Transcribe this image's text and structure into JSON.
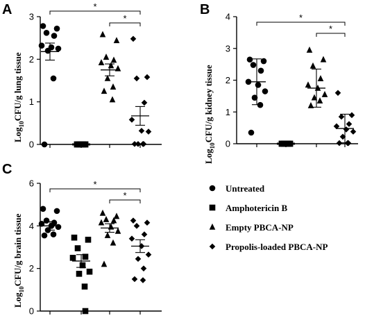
{
  "chart_data": [
    {
      "panel": "A",
      "type": "scatter",
      "ylabel": "Log10CFU/g lung tissue",
      "ylabel_main": "Log",
      "ylabel_sub": "10",
      "ylabel_rest": "CFU/g lung tissue",
      "ylim": [
        0,
        3
      ],
      "yticks": [
        0,
        1,
        2,
        3
      ],
      "groups": [
        "Untreated",
        "Amphotericin B",
        "Empty PBCA-NP",
        "Propolis-loaded PBCA-NP"
      ],
      "series": [
        {
          "marker": "circle",
          "values": [
            2.78,
            2.72,
            2.62,
            2.55,
            2.32,
            2.28,
            2.25,
            2.2,
            1.55,
            0.0
          ],
          "mean": 2.18,
          "sem": 0.2
        },
        {
          "marker": "square",
          "values": [
            0,
            0,
            0,
            0,
            0,
            0,
            0,
            0,
            0,
            0
          ],
          "mean": 0,
          "sem": 0
        },
        {
          "marker": "triangle",
          "values": [
            2.58,
            2.44,
            2.05,
            1.98,
            1.92,
            1.85,
            1.78,
            1.55,
            1.35,
            1.25,
            1.05
          ],
          "mean": 1.75,
          "sem": 0.14
        },
        {
          "marker": "diamond",
          "values": [
            2.48,
            1.58,
            1.55,
            0.98,
            0.58,
            0.32,
            0.3,
            0.01,
            0.01,
            0.01,
            0.01
          ],
          "mean": 0.67,
          "sem": 0.22
        }
      ],
      "significance": [
        {
          "from": 0,
          "to": 3,
          "label": "*"
        },
        {
          "from": 2,
          "to": 3,
          "label": "*"
        }
      ]
    },
    {
      "panel": "B",
      "type": "scatter",
      "ylabel": "Log10CFU/g kidney tissue",
      "ylabel_main": "Log",
      "ylabel_sub": "10",
      "ylabel_rest": "CFU/g kidney tissue",
      "ylim": [
        0,
        4
      ],
      "yticks": [
        0,
        1,
        2,
        3,
        4
      ],
      "groups": [
        "Untreated",
        "Amphotericin B",
        "Empty PBCA-NP",
        "Propolis-loaded PBCA-NP"
      ],
      "series": [
        {
          "marker": "circle",
          "values": [
            2.65,
            2.6,
            2.48,
            2.3,
            1.95,
            1.85,
            1.65,
            1.45,
            1.22,
            0.35
          ],
          "mean": 1.95,
          "sem": 0.72
        },
        {
          "marker": "square",
          "values": [
            0,
            0,
            0,
            0,
            0,
            0,
            0,
            0,
            0,
            0
          ],
          "mean": 0,
          "sem": 0
        },
        {
          "marker": "triangle",
          "values": [
            2.95,
            2.65,
            2.45,
            2.05,
            1.85,
            1.75,
            1.55,
            1.45,
            1.35,
            1.2
          ],
          "mean": 1.75,
          "sem": 0.6
        },
        {
          "marker": "diamond",
          "values": [
            1.6,
            0.9,
            0.85,
            0.62,
            0.55,
            0.45,
            0.38,
            0.22,
            0.02,
            0.02,
            0.02
          ],
          "mean": 0.48,
          "sem": 0.45
        }
      ],
      "significance": [
        {
          "from": 0,
          "to": 3,
          "label": "*"
        },
        {
          "from": 2,
          "to": 3,
          "label": "*"
        }
      ]
    },
    {
      "panel": "C",
      "type": "scatter",
      "ylabel": "Log10CFU/g brain tissue",
      "ylabel_main": "Log",
      "ylabel_sub": "10",
      "ylabel_rest": "CFU/g brain tissue",
      "ylim": [
        0,
        6
      ],
      "yticks": [
        0,
        2,
        4,
        6
      ],
      "groups": [
        "Untreated",
        "Amphotericin B",
        "Empty PBCA-NP",
        "Propolis-loaded PBCA-NP"
      ],
      "series": [
        {
          "marker": "circle",
          "values": [
            4.8,
            4.7,
            4.25,
            4.15,
            4.1,
            4.0,
            3.95,
            3.8,
            3.6,
            3.55
          ],
          "mean": 4.0,
          "sem": 0.2
        },
        {
          "marker": "square",
          "values": [
            3.45,
            3.35,
            2.95,
            2.55,
            2.5,
            2.15,
            1.85,
            1.75,
            1.15,
            0.0
          ],
          "mean": 2.35,
          "sem": 0.3
        },
        {
          "marker": "triangle",
          "values": [
            4.6,
            4.45,
            4.3,
            4.25,
            4.15,
            3.95,
            3.75,
            3.55,
            3.2,
            2.2
          ],
          "mean": 3.9,
          "sem": 0.2
        },
        {
          "marker": "diamond",
          "values": [
            4.25,
            4.15,
            4.0,
            3.6,
            3.4,
            3.05,
            2.65,
            2.45,
            2.0,
            1.5,
            1.45
          ],
          "mean": 3.05,
          "sem": 0.3
        }
      ],
      "significance": [
        {
          "from": 0,
          "to": 3,
          "label": "*"
        },
        {
          "from": 2,
          "to": 3,
          "label": "*"
        }
      ]
    }
  ],
  "legend": {
    "placement": "right",
    "items": [
      {
        "marker": "circle",
        "label": "Untreated"
      },
      {
        "marker": "square",
        "label": "Amphotericin B"
      },
      {
        "marker": "triangle",
        "label": "Empty PBCA-NP"
      },
      {
        "marker": "diamond",
        "label": "Propolis-loaded PBCA-NP"
      }
    ]
  }
}
